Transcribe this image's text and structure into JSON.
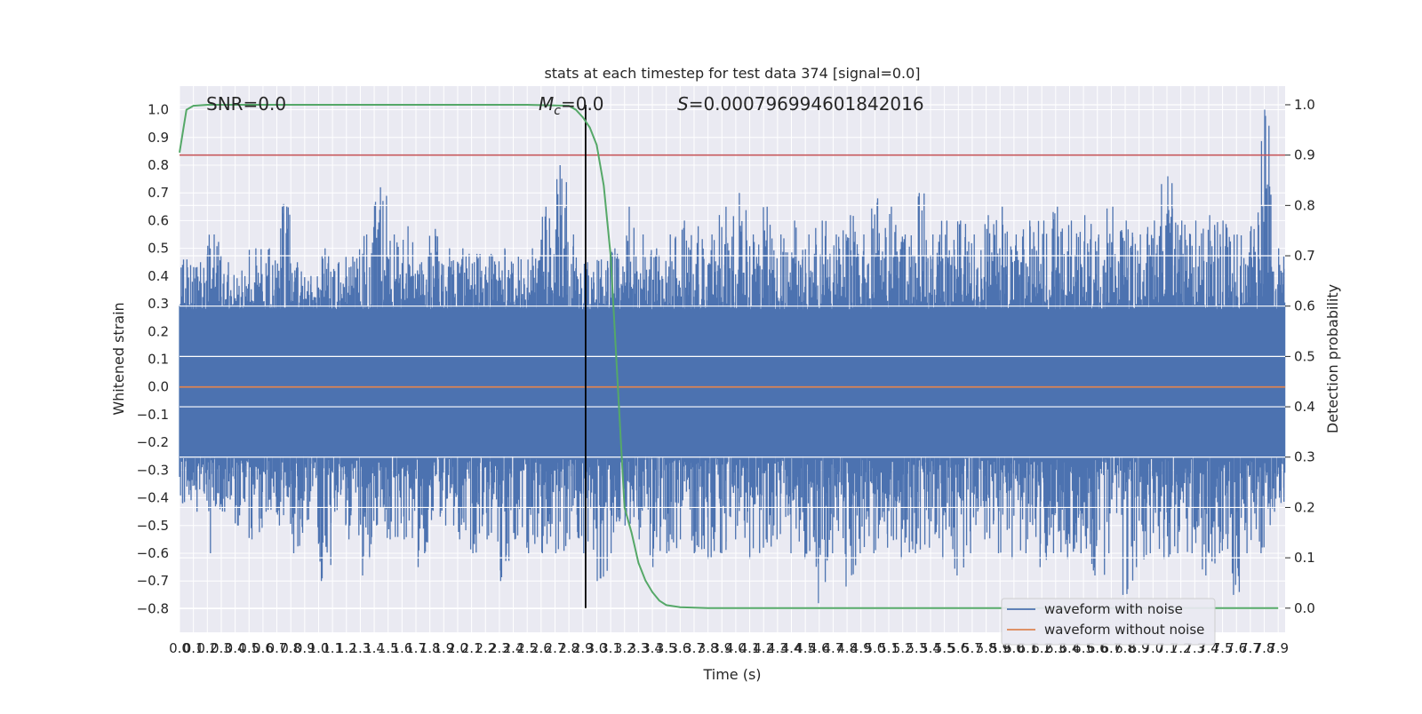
{
  "chart_data": {
    "type": "line",
    "title": "stats at each timestep for test data 374 [signal=0.0]",
    "xlabel": "Time (s)",
    "ylabel_left": "Whitened strain",
    "ylabel_right": "Detection probability",
    "xlim": [
      0.0,
      7.95
    ],
    "ylim_left": [
      -0.885,
      1.085
    ],
    "ylim_right": [
      -0.048,
      1.037
    ],
    "grid": true,
    "legend_placement": "lower-right",
    "x_ticks": [
      "0.0",
      "0.1",
      "0.2",
      "0.3",
      "0.4",
      "0.5",
      "0.6",
      "0.7",
      "0.8",
      "0.9",
      "1.0",
      "1.1",
      "1.2",
      "1.3",
      "1.4",
      "1.5",
      "1.6",
      "1.7",
      "1.8",
      "1.9",
      "2.0",
      "2.1",
      "2.2",
      "2.3",
      "2.4",
      "2.5",
      "2.6",
      "2.7",
      "2.8",
      "2.9",
      "3.0",
      "3.1",
      "3.2",
      "3.3",
      "3.4",
      "3.5",
      "3.6",
      "3.7",
      "3.8",
      "3.9",
      "4.0",
      "4.1",
      "4.2",
      "4.3",
      "4.4",
      "4.5",
      "4.6",
      "4.7",
      "4.8",
      "4.9",
      "5.0",
      "5.1",
      "5.2",
      "5.3",
      "5.4",
      "5.5",
      "5.6",
      "5.7",
      "5.8",
      "5.9",
      "6.0",
      "6.1",
      "6.2",
      "6.3",
      "6.4",
      "6.5",
      "6.6",
      "6.7",
      "6.8",
      "6.9",
      "7.0",
      "7.1",
      "7.2",
      "7.3",
      "7.4",
      "7.5",
      "7.6",
      "7.7",
      "7.8",
      "7.9"
    ],
    "y_ticks_left": [
      "1.0",
      "0.9",
      "0.8",
      "0.7",
      "0.6",
      "0.5",
      "0.4",
      "0.3",
      "0.2",
      "0.1",
      "0.0",
      "−0.1",
      "−0.2",
      "−0.3",
      "−0.4",
      "−0.5",
      "−0.6",
      "−0.7",
      "−0.8"
    ],
    "y_ticks_right": [
      "1.0",
      "0.9",
      "0.8",
      "0.7",
      "0.6",
      "0.5",
      "0.4",
      "0.3",
      "0.2",
      "0.1",
      "0.0"
    ],
    "annotations": {
      "snr": "SNR=0.0",
      "mc_symbol": "M",
      "mc_subscript": "c",
      "mc_value": "=0.0",
      "s_symbol": "S",
      "s_value": "=0.000796994601842016"
    },
    "series": [
      {
        "name": "waveform with noise",
        "color": "#4c72b0",
        "axis": "left",
        "envelope_upper": [
          0.46,
          0.45,
          0.55,
          0.45,
          0.42,
          0.5,
          0.5,
          0.66,
          0.45,
          0.4,
          0.5,
          0.45,
          0.47,
          0.55,
          0.72,
          0.55,
          0.58,
          0.45,
          0.57,
          0.5,
          0.5,
          0.48,
          0.48,
          0.5,
          0.47,
          0.5,
          0.65,
          0.8,
          0.55,
          0.45,
          0.46,
          0.5,
          0.65,
          0.55,
          0.5,
          0.55,
          0.6,
          0.58,
          0.55,
          0.65,
          0.7,
          0.55,
          0.65,
          0.55,
          0.6,
          0.55,
          0.6,
          0.55,
          0.62,
          0.55,
          0.68,
          0.65,
          0.55,
          0.7,
          0.55,
          0.6,
          0.6,
          0.55,
          0.62,
          0.65,
          0.55,
          0.6,
          0.6,
          0.65,
          0.6,
          0.62,
          0.55,
          0.65,
          0.6,
          0.55,
          0.6,
          0.76,
          0.6,
          0.6,
          0.62,
          0.6,
          0.55,
          0.58,
          1.0,
          0.5
        ],
        "envelope_lower": [
          -0.42,
          -0.45,
          -0.6,
          -0.45,
          -0.5,
          -0.55,
          -0.45,
          -0.5,
          -0.6,
          -0.48,
          -0.7,
          -0.45,
          -0.55,
          -0.68,
          -0.5,
          -0.55,
          -0.55,
          -0.65,
          -0.48,
          -0.5,
          -0.55,
          -0.6,
          -0.55,
          -0.7,
          -0.55,
          -0.6,
          -0.6,
          -0.6,
          -0.55,
          -0.6,
          -0.7,
          -0.6,
          -0.5,
          -0.55,
          -0.65,
          -0.6,
          -0.55,
          -0.6,
          -0.62,
          -0.6,
          -0.55,
          -0.62,
          -0.58,
          -0.55,
          -0.6,
          -0.62,
          -0.78,
          -0.6,
          -0.72,
          -0.6,
          -0.6,
          -0.58,
          -0.62,
          -0.6,
          -0.58,
          -0.62,
          -0.68,
          -0.6,
          -0.55,
          -0.6,
          -0.62,
          -0.6,
          -0.65,
          -0.6,
          -0.62,
          -0.6,
          -0.68,
          -0.6,
          -0.75,
          -0.65,
          -0.6,
          -0.62,
          -0.6,
          -0.6,
          -0.68,
          -0.6,
          -0.75,
          -0.6,
          -0.6,
          -0.45
        ]
      },
      {
        "name": "waveform without noise",
        "color": "#dd8452",
        "axis": "left",
        "x": [
          0.0,
          7.95
        ],
        "y": [
          0.0,
          0.0
        ]
      },
      {
        "name": "",
        "color": "#55a868",
        "axis": "right",
        "x": [
          0.0,
          0.05,
          0.1,
          0.2,
          0.5,
          1.0,
          1.5,
          2.0,
          2.5,
          2.8,
          2.85,
          2.9,
          2.95,
          3.0,
          3.05,
          3.1,
          3.15,
          3.2,
          3.25,
          3.3,
          3.35,
          3.4,
          3.45,
          3.5,
          3.6,
          3.8,
          4.5,
          6.0,
          7.9
        ],
        "y": [
          0.905,
          0.99,
          0.998,
          1.0,
          1.0,
          1.0,
          1.0,
          1.0,
          1.0,
          0.998,
          0.99,
          0.975,
          0.955,
          0.92,
          0.84,
          0.7,
          0.45,
          0.2,
          0.15,
          0.09,
          0.055,
          0.032,
          0.015,
          0.006,
          0.002,
          0.0,
          0.0,
          0.0,
          0.0
        ]
      }
    ],
    "threshold_line": {
      "axis": "right",
      "y": 0.9,
      "color": "#c44e52"
    },
    "event_marker": {
      "x": 2.92,
      "color": "#000000"
    }
  }
}
